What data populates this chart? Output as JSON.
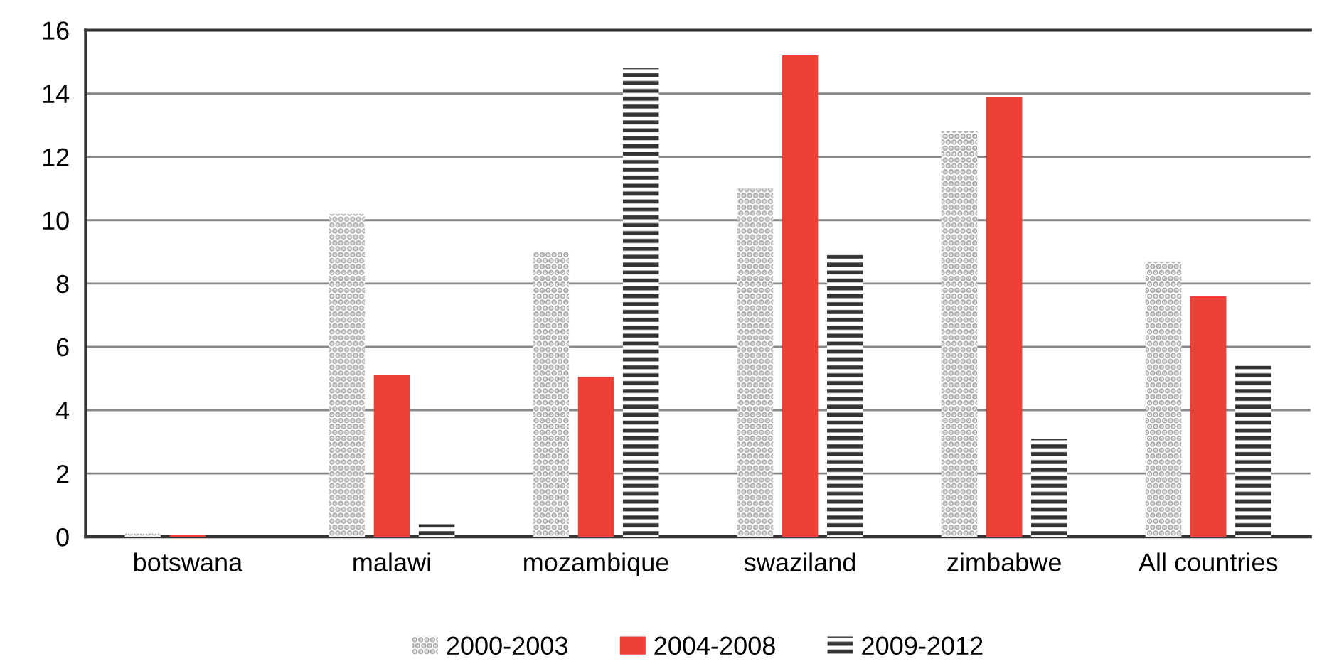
{
  "chart_data": {
    "type": "bar",
    "categories": [
      "botswana",
      "malawi",
      "mozambique",
      "swaziland",
      "zimbabwe",
      "All countries"
    ],
    "series": [
      {
        "name": "2000-2003",
        "color": "#9e9e9e",
        "values": [
          0.1,
          10.2,
          9.0,
          11.0,
          12.8,
          8.7
        ]
      },
      {
        "name": "2004-2008",
        "color": "#ee4035",
        "values": [
          0.05,
          5.1,
          5.05,
          15.2,
          13.9,
          7.6
        ]
      },
      {
        "name": "2009-2012",
        "color": "#333333",
        "values": [
          0,
          0.4,
          14.8,
          8.9,
          3.1,
          5.4
        ]
      }
    ],
    "ylim": [
      0,
      16
    ],
    "yticks": [
      0,
      2,
      4,
      6,
      8,
      10,
      12,
      14,
      16
    ],
    "grid": "y",
    "legend": "bottom"
  }
}
